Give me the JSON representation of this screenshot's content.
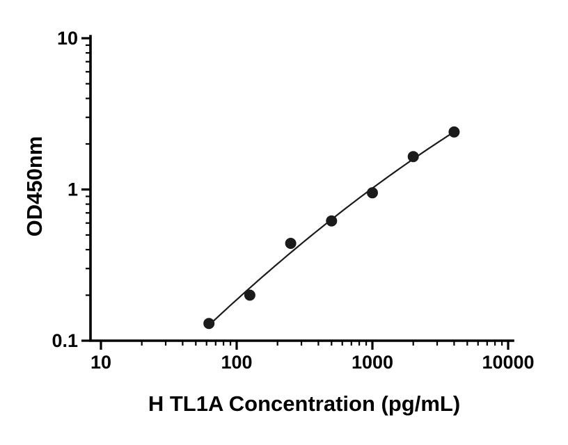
{
  "figure": {
    "background_color": "#ffffff"
  },
  "chart_data": {
    "type": "scatter",
    "title": "",
    "xlabel": "H TL1A Concentration (pg/mL)",
    "ylabel": "OD450nm",
    "x_scale": "log10",
    "y_scale": "log10",
    "xlim": [
      10,
      10000
    ],
    "ylim": [
      0.1,
      10
    ],
    "grid": false,
    "legend": false,
    "x_ticks": [
      {
        "value": 10,
        "label": "10"
      },
      {
        "value": 100,
        "label": "100"
      },
      {
        "value": 1000,
        "label": "1000"
      },
      {
        "value": 10000,
        "label": "10000"
      }
    ],
    "y_ticks": [
      {
        "value": 0.1,
        "label": "0.1"
      },
      {
        "value": 1,
        "label": "1"
      },
      {
        "value": 10,
        "label": "10"
      }
    ],
    "minor_ticks": "log-decade-ticks",
    "points": [
      {
        "x": 62.5,
        "y": 0.13
      },
      {
        "x": 125,
        "y": 0.2
      },
      {
        "x": 250,
        "y": 0.44
      },
      {
        "x": 500,
        "y": 0.62
      },
      {
        "x": 1000,
        "y": 0.95
      },
      {
        "x": 2000,
        "y": 1.65
      },
      {
        "x": 4000,
        "y": 2.4
      }
    ],
    "fit_line": "smooth-standard-curve-fit",
    "colors": {
      "axis": "#000000",
      "marker": "#1b1b1b",
      "line": "#1b1b1b",
      "background": "#ffffff",
      "text": "#000000"
    }
  }
}
